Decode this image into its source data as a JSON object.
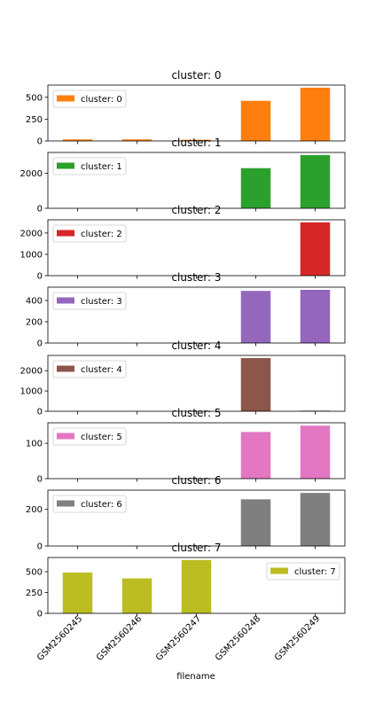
{
  "chart_data": {
    "type": "bar",
    "layout": "stacked-subplots-shared-x",
    "xlabel": "filename",
    "categories": [
      "GSM2560245",
      "GSM2560246",
      "GSM2560247",
      "GSM2560248",
      "GSM2560249"
    ],
    "subplots": [
      {
        "title": "cluster: 0",
        "legend": "cluster: 0",
        "legend_position": "upper-left",
        "color": "#ff7f0e",
        "values": [
          18,
          18,
          14,
          460,
          610
        ],
        "ylim": [
          0,
          640
        ],
        "yticks": [
          0,
          250,
          500
        ]
      },
      {
        "title": "cluster: 1",
        "legend": "cluster: 1",
        "legend_position": "upper-left",
        "color": "#2ca02c",
        "values": [
          0,
          0,
          0,
          2300,
          3050
        ],
        "ylim": [
          0,
          3200
        ],
        "yticks": [
          0,
          2000
        ]
      },
      {
        "title": "cluster: 2",
        "legend": "cluster: 2",
        "legend_position": "upper-left",
        "color": "#d62728",
        "values": [
          0,
          0,
          0,
          0,
          2500
        ],
        "ylim": [
          0,
          2620
        ],
        "yticks": [
          0,
          1000,
          2000
        ]
      },
      {
        "title": "cluster: 3",
        "legend": "cluster: 3",
        "legend_position": "upper-left",
        "color": "#9467bd",
        "values": [
          0,
          0,
          0,
          490,
          500
        ],
        "ylim": [
          0,
          525
        ],
        "yticks": [
          0,
          200,
          400
        ]
      },
      {
        "title": "cluster: 4",
        "legend": "cluster: 4",
        "legend_position": "upper-left",
        "color": "#8c564b",
        "values": [
          0,
          0,
          0,
          2620,
          30
        ],
        "ylim": [
          0,
          2750
        ],
        "yticks": [
          0,
          1000,
          2000
        ]
      },
      {
        "title": "cluster: 5",
        "legend": "cluster: 5",
        "legend_position": "upper-left",
        "color": "#e377c2",
        "values": [
          0,
          0,
          0,
          132,
          150
        ],
        "ylim": [
          0,
          158
        ],
        "yticks": [
          0,
          100
        ]
      },
      {
        "title": "cluster: 6",
        "legend": "cluster: 6",
        "legend_position": "upper-left",
        "color": "#7f7f7f",
        "values": [
          0,
          0,
          0,
          255,
          290
        ],
        "ylim": [
          0,
          305
        ],
        "yticks": [
          0,
          200
        ]
      },
      {
        "title": "cluster: 7",
        "legend": "cluster: 7",
        "legend_position": "upper-right",
        "color": "#bcbd22",
        "values": [
          490,
          420,
          640,
          0,
          0
        ],
        "ylim": [
          0,
          670
        ],
        "yticks": [
          0,
          250,
          500
        ]
      }
    ]
  }
}
